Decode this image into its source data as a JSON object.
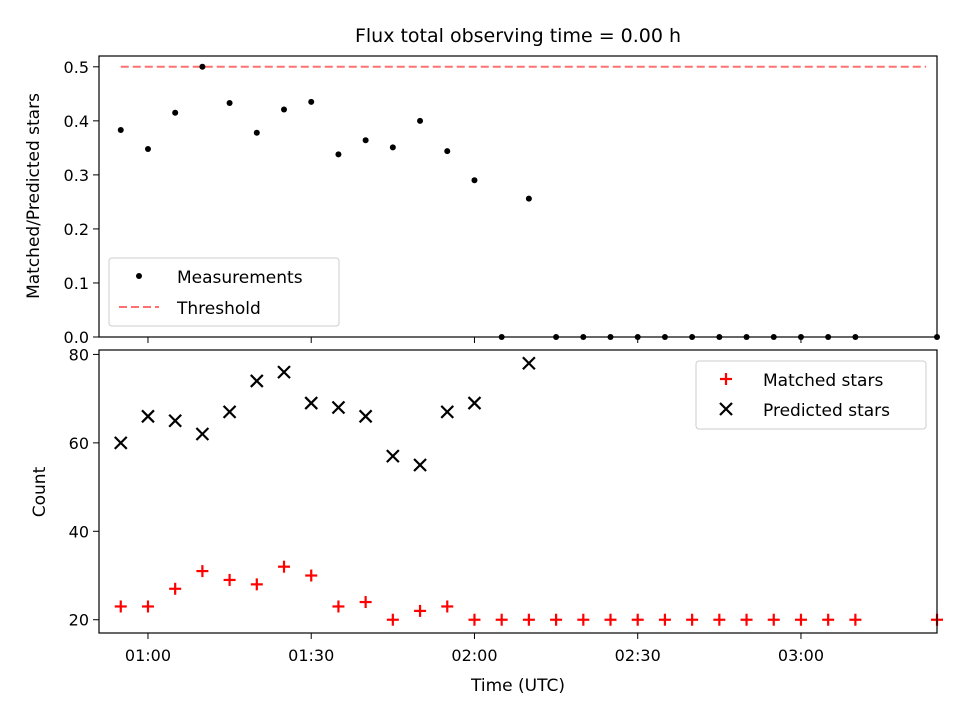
{
  "chart_data": [
    {
      "type": "scatter",
      "title": "Flux total observing time = 0.00 h",
      "ylabel": "Matched/Predicted stars",
      "xlabel": "",
      "xlim": [
        "00:51",
        "03:25"
      ],
      "ylim": [
        0,
        0.52
      ],
      "yticks": [
        0.0,
        0.1,
        0.2,
        0.3,
        0.4,
        0.5
      ],
      "ytick_labels": [
        "0.0",
        "0.1",
        "0.2",
        "0.3",
        "0.4",
        "0.5"
      ],
      "grid": false,
      "legend_position": "lower-left",
      "series": [
        {
          "name": "Measurements",
          "marker": "dot",
          "color": "#000000",
          "x": [
            "00:55",
            "01:00",
            "01:05",
            "01:10",
            "01:15",
            "01:20",
            "01:25",
            "01:30",
            "01:35",
            "01:40",
            "01:45",
            "01:50",
            "01:55",
            "02:00",
            "02:05",
            "02:10",
            "02:15",
            "02:20",
            "02:25",
            "02:30",
            "02:35",
            "02:40",
            "02:45",
            "02:50",
            "02:55",
            "03:00",
            "03:05",
            "03:10",
            "03:25"
          ],
          "y": [
            0.383,
            0.348,
            0.415,
            0.5,
            0.433,
            0.378,
            0.421,
            0.435,
            0.338,
            0.364,
            0.351,
            0.4,
            0.344,
            0.29,
            0.0,
            0.256,
            0.0,
            0.0,
            0.0,
            0.0,
            0.0,
            0.0,
            0.0,
            0.0,
            0.0,
            0.0,
            0.0,
            0.0,
            0.0
          ]
        },
        {
          "name": "Threshold",
          "line": "dashed",
          "color": "#ff7070",
          "x": [
            "00:55",
            "03:23"
          ],
          "y": [
            0.5,
            0.5
          ]
        }
      ]
    },
    {
      "type": "scatter",
      "title": "",
      "xlabel": "Time (UTC)",
      "ylabel": "Count",
      "xlim": [
        "00:51",
        "03:25"
      ],
      "ylim": [
        17,
        81
      ],
      "yticks": [
        20,
        40,
        60,
        80
      ],
      "ytick_labels": [
        "20",
        "40",
        "60",
        "80"
      ],
      "xticks": [
        "01:00",
        "01:30",
        "02:00",
        "02:30",
        "03:00"
      ],
      "xtick_labels": [
        "01:00",
        "01:30",
        "02:00",
        "02:30",
        "03:00"
      ],
      "grid": false,
      "legend_position": "top-right",
      "series": [
        {
          "name": "Matched stars",
          "marker": "plus",
          "color": "#ff0000",
          "x": [
            "00:55",
            "01:00",
            "01:05",
            "01:10",
            "01:15",
            "01:20",
            "01:25",
            "01:30",
            "01:35",
            "01:40",
            "01:45",
            "01:50",
            "01:55",
            "02:00",
            "02:05",
            "02:10",
            "02:15",
            "02:20",
            "02:25",
            "02:30",
            "02:35",
            "02:40",
            "02:45",
            "02:50",
            "02:55",
            "03:00",
            "03:05",
            "03:10",
            "03:25"
          ],
          "y": [
            23,
            23,
            27,
            31,
            29,
            28,
            32,
            30,
            23,
            24,
            20,
            22,
            23,
            20,
            20,
            20,
            20,
            20,
            20,
            20,
            20,
            20,
            20,
            20,
            20,
            20,
            20,
            20,
            20
          ]
        },
        {
          "name": "Predicted stars",
          "marker": "x",
          "color": "#000000",
          "x": [
            "00:55",
            "01:00",
            "01:05",
            "01:10",
            "01:15",
            "01:20",
            "01:25",
            "01:30",
            "01:35",
            "01:40",
            "01:45",
            "01:50",
            "01:55",
            "02:00",
            "02:05",
            "02:10"
          ],
          "y": [
            60,
            66,
            65,
            62,
            67,
            74,
            76,
            69,
            68,
            66,
            57,
            55,
            67,
            69,
            null,
            78
          ]
        }
      ]
    }
  ]
}
